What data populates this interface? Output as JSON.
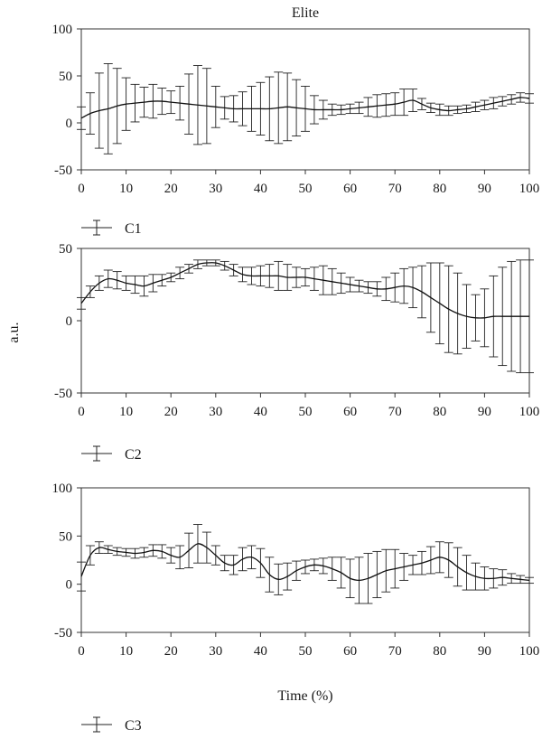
{
  "figure": {
    "title": "Elite",
    "ylabel": "a.u.",
    "xlabel": "Time (%)"
  },
  "chart_data": [
    {
      "type": "line",
      "legend": "C1",
      "xlim": [
        0,
        100
      ],
      "ylim": [
        -50,
        100
      ],
      "xticks": [
        0,
        10,
        20,
        30,
        40,
        50,
        60,
        70,
        80,
        90,
        100
      ],
      "yticks": [
        -50,
        0,
        50,
        100
      ],
      "series": [
        {
          "name": "C1",
          "x": [
            0,
            2,
            4,
            6,
            8,
            10,
            12,
            14,
            16,
            18,
            20,
            22,
            24,
            26,
            28,
            30,
            32,
            34,
            36,
            38,
            40,
            42,
            44,
            46,
            48,
            50,
            52,
            54,
            56,
            58,
            60,
            62,
            64,
            66,
            68,
            70,
            72,
            74,
            76,
            78,
            80,
            82,
            84,
            86,
            88,
            90,
            92,
            94,
            96,
            98,
            100
          ],
          "mean": [
            5,
            10,
            13,
            15,
            18,
            20,
            21,
            22,
            23,
            23,
            22,
            21,
            20,
            19,
            18,
            17,
            16,
            15,
            15,
            15,
            15,
            15,
            16,
            17,
            16,
            15,
            14,
            14,
            14,
            14,
            15,
            16,
            17,
            18,
            19,
            20,
            22,
            24,
            20,
            16,
            14,
            13,
            14,
            15,
            17,
            19,
            21,
            23,
            25,
            27,
            26
          ],
          "sd": [
            12,
            22,
            40,
            48,
            40,
            28,
            20,
            16,
            18,
            14,
            12,
            18,
            32,
            42,
            40,
            22,
            12,
            14,
            18,
            24,
            28,
            34,
            38,
            36,
            30,
            24,
            15,
            10,
            6,
            5,
            5,
            6,
            10,
            12,
            12,
            12,
            14,
            12,
            6,
            5,
            6,
            5,
            4,
            4,
            5,
            5,
            6,
            5,
            5,
            5,
            5
          ]
        }
      ]
    },
    {
      "type": "line",
      "legend": "C2",
      "xlim": [
        0,
        100
      ],
      "ylim": [
        -50,
        50
      ],
      "xticks": [
        0,
        10,
        20,
        30,
        40,
        50,
        60,
        70,
        80,
        90,
        100
      ],
      "yticks": [
        -50,
        0,
        50
      ],
      "series": [
        {
          "name": "C2",
          "x": [
            0,
            2,
            4,
            6,
            8,
            10,
            12,
            14,
            16,
            18,
            20,
            22,
            24,
            26,
            28,
            30,
            32,
            34,
            36,
            38,
            40,
            42,
            44,
            46,
            48,
            50,
            52,
            54,
            56,
            58,
            60,
            62,
            64,
            66,
            68,
            70,
            72,
            74,
            76,
            78,
            80,
            82,
            84,
            86,
            88,
            90,
            92,
            94,
            96,
            98,
            100
          ],
          "mean": [
            12,
            20,
            26,
            29,
            28,
            26,
            25,
            24,
            26,
            28,
            30,
            33,
            36,
            39,
            40,
            40,
            38,
            35,
            32,
            31,
            31,
            31,
            31,
            30,
            30,
            30,
            29,
            28,
            27,
            26,
            25,
            24,
            23,
            22,
            22,
            23,
            24,
            23,
            20,
            16,
            12,
            8,
            5,
            3,
            2,
            2,
            3,
            3,
            3,
            3,
            3
          ],
          "sd": [
            4,
            4,
            5,
            6,
            6,
            5,
            6,
            7,
            6,
            4,
            3,
            4,
            3,
            3,
            2,
            2,
            3,
            4,
            5,
            6,
            7,
            8,
            10,
            9,
            7,
            6,
            8,
            10,
            9,
            7,
            5,
            4,
            4,
            5,
            8,
            10,
            12,
            14,
            18,
            24,
            28,
            30,
            28,
            22,
            16,
            20,
            28,
            34,
            38,
            39,
            39
          ]
        }
      ]
    },
    {
      "type": "line",
      "legend": "C3",
      "xlim": [
        0,
        100
      ],
      "ylim": [
        -50,
        100
      ],
      "xticks": [
        0,
        10,
        20,
        30,
        40,
        50,
        60,
        70,
        80,
        90,
        100
      ],
      "yticks": [
        -50,
        0,
        50,
        100
      ],
      "series": [
        {
          "name": "C3",
          "x": [
            0,
            2,
            4,
            6,
            8,
            10,
            12,
            14,
            16,
            18,
            20,
            22,
            24,
            26,
            28,
            30,
            32,
            34,
            36,
            38,
            40,
            42,
            44,
            46,
            48,
            50,
            52,
            54,
            56,
            58,
            60,
            62,
            64,
            66,
            68,
            70,
            72,
            74,
            76,
            78,
            80,
            82,
            84,
            86,
            88,
            90,
            92,
            94,
            96,
            98,
            100
          ],
          "mean": [
            8,
            30,
            38,
            36,
            34,
            33,
            32,
            33,
            35,
            34,
            30,
            28,
            35,
            42,
            38,
            30,
            22,
            20,
            26,
            28,
            22,
            10,
            5,
            8,
            14,
            18,
            20,
            19,
            16,
            12,
            6,
            4,
            6,
            10,
            14,
            16,
            18,
            20,
            22,
            25,
            28,
            25,
            18,
            12,
            8,
            6,
            6,
            7,
            6,
            5,
            4
          ],
          "sd": [
            15,
            10,
            6,
            4,
            4,
            4,
            5,
            5,
            6,
            7,
            8,
            12,
            18,
            20,
            16,
            10,
            8,
            10,
            12,
            12,
            15,
            18,
            16,
            14,
            10,
            7,
            6,
            8,
            12,
            16,
            20,
            24,
            26,
            24,
            22,
            20,
            14,
            10,
            12,
            14,
            16,
            18,
            20,
            18,
            14,
            12,
            10,
            8,
            5,
            4,
            3
          ]
        }
      ]
    }
  ]
}
